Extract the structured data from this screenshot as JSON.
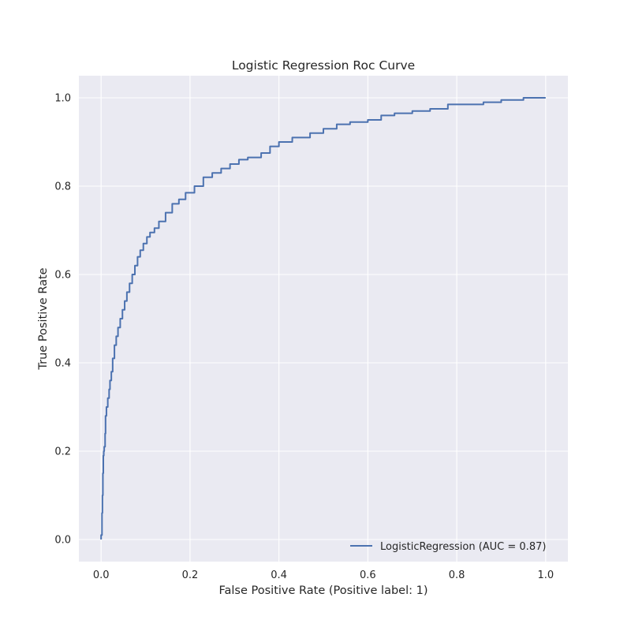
{
  "chart_data": {
    "type": "line",
    "title": "Logistic Regression Roc Curve",
    "xlabel": "False Positive Rate (Positive label: 1)",
    "ylabel": "True Positive Rate",
    "xlim": [
      -0.05,
      1.05
    ],
    "ylim": [
      -0.05,
      1.05
    ],
    "xticks": [
      0.0,
      0.2,
      0.4,
      0.6,
      0.8,
      1.0
    ],
    "yticks": [
      0.0,
      0.2,
      0.4,
      0.6,
      0.8,
      1.0
    ],
    "xtick_labels": [
      "0.0",
      "0.2",
      "0.4",
      "0.6",
      "0.8",
      "1.0"
    ],
    "ytick_labels": [
      "0.0",
      "0.2",
      "0.4",
      "0.6",
      "0.8",
      "1.0"
    ],
    "grid": true,
    "legend_position": "bottom-right",
    "colors": {
      "plot_background": "#eaeaf2",
      "grid": "#ffffff",
      "line": "#4c72b0",
      "text": "#262626"
    },
    "series": [
      {
        "name": "LogisticRegression (AUC = 0.87)",
        "x": [
          0.0,
          0.0,
          0.002,
          0.003,
          0.004,
          0.005,
          0.006,
          0.007,
          0.009,
          0.01,
          0.012,
          0.015,
          0.018,
          0.02,
          0.023,
          0.026,
          0.03,
          0.034,
          0.038,
          0.043,
          0.048,
          0.053,
          0.058,
          0.064,
          0.07,
          0.076,
          0.082,
          0.088,
          0.095,
          0.103,
          0.11,
          0.12,
          0.13,
          0.145,
          0.16,
          0.175,
          0.19,
          0.21,
          0.23,
          0.25,
          0.27,
          0.29,
          0.31,
          0.33,
          0.36,
          0.38,
          0.4,
          0.43,
          0.47,
          0.5,
          0.53,
          0.56,
          0.6,
          0.63,
          0.66,
          0.7,
          0.74,
          0.78,
          0.82,
          0.86,
          0.9,
          0.95,
          1.0
        ],
        "y": [
          0.0,
          0.01,
          0.06,
          0.1,
          0.15,
          0.19,
          0.2,
          0.21,
          0.24,
          0.28,
          0.3,
          0.32,
          0.34,
          0.36,
          0.38,
          0.41,
          0.44,
          0.46,
          0.48,
          0.5,
          0.52,
          0.54,
          0.56,
          0.58,
          0.6,
          0.62,
          0.64,
          0.655,
          0.67,
          0.685,
          0.695,
          0.705,
          0.72,
          0.74,
          0.76,
          0.77,
          0.785,
          0.8,
          0.82,
          0.83,
          0.84,
          0.85,
          0.86,
          0.865,
          0.875,
          0.89,
          0.9,
          0.91,
          0.92,
          0.93,
          0.94,
          0.945,
          0.95,
          0.96,
          0.965,
          0.97,
          0.975,
          0.985,
          0.985,
          0.99,
          0.995,
          1.0,
          1.0
        ]
      }
    ]
  }
}
